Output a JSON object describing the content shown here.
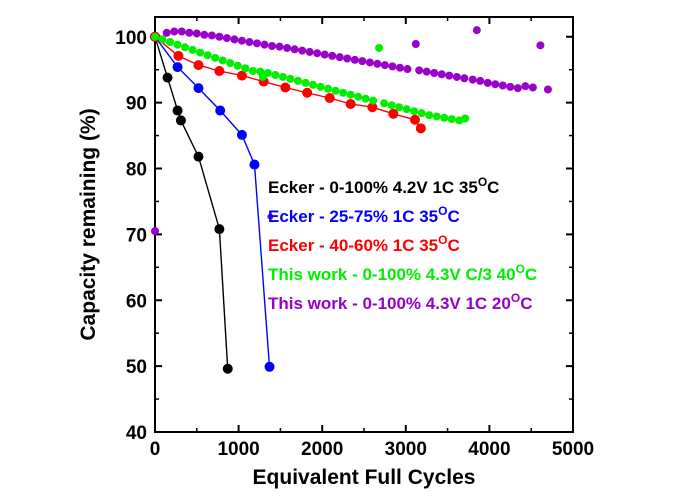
{
  "chart_data": {
    "type": "scatter",
    "title": "",
    "xlabel": "Equivalent Full Cycles",
    "ylabel": "Capacity remaining (%)",
    "xlim": [
      0,
      5000
    ],
    "ylim": [
      40,
      103
    ],
    "xticks": [
      "0",
      "1000",
      "2000",
      "3000",
      "4000",
      "5000"
    ],
    "yticks": [
      "40",
      "50",
      "60",
      "70",
      "80",
      "90",
      "100"
    ],
    "grid": false,
    "legend_placement": "center-right (inside plot)",
    "series": [
      {
        "name": "Ecker - 0-100% 4.2V 1C 35",
        "name_sup": "O",
        "name_suffix": "C",
        "color": "#000000",
        "connected": true,
        "points": [
          [
            0,
            100
          ],
          [
            150,
            93.8
          ],
          [
            270,
            88.8
          ],
          [
            310,
            87.3
          ],
          [
            520,
            81.8
          ],
          [
            770,
            70.8
          ],
          [
            870,
            49.6
          ]
        ]
      },
      {
        "name": "Ecker - 25-75% 1C 35",
        "name_sup": "O",
        "name_suffix": "C",
        "color": "#0000ff",
        "connected": true,
        "points": [
          [
            0,
            100
          ],
          [
            270,
            95.4
          ],
          [
            520,
            92.2
          ],
          [
            780,
            88.8
          ],
          [
            1040,
            85.1
          ],
          [
            1190,
            80.6
          ],
          [
            1370,
            49.9
          ]
        ]
      },
      {
        "name": "Ecker - 40-60% 1C 35",
        "name_sup": "O",
        "name_suffix": "C",
        "color": "#ff0000",
        "connected": true,
        "points": [
          [
            0,
            100
          ],
          [
            280,
            97.1
          ],
          [
            520,
            95.7
          ],
          [
            770,
            94.8
          ],
          [
            1040,
            94.1
          ],
          [
            1300,
            93.2
          ],
          [
            1560,
            92.3
          ],
          [
            1820,
            91.5
          ],
          [
            2090,
            90.7
          ],
          [
            2340,
            89.8
          ],
          [
            2600,
            89.3
          ],
          [
            2850,
            88.3
          ],
          [
            3110,
            87.4
          ],
          [
            3180,
            86.1
          ]
        ]
      },
      {
        "name": "This work - 0-100% 4.3V C/3 40",
        "name_sup": "O",
        "name_suffix": "C",
        "color": "#00ee00",
        "connected": false,
        "points": [
          [
            0,
            100
          ],
          [
            90,
            99.6
          ],
          [
            180,
            99.2
          ],
          [
            270,
            98.8
          ],
          [
            360,
            98.4
          ],
          [
            450,
            98.0
          ],
          [
            540,
            97.6
          ],
          [
            630,
            97.2
          ],
          [
            720,
            96.8
          ],
          [
            810,
            96.4
          ],
          [
            900,
            96.0
          ],
          [
            990,
            95.6
          ],
          [
            1080,
            95.2
          ],
          [
            1170,
            94.8
          ],
          [
            1260,
            94.7
          ],
          [
            1290,
            93.9
          ],
          [
            1350,
            94.5
          ],
          [
            1440,
            94.2
          ],
          [
            1530,
            93.9
          ],
          [
            1620,
            93.6
          ],
          [
            1710,
            93.3
          ],
          [
            1800,
            93.0
          ],
          [
            1890,
            92.7
          ],
          [
            1980,
            92.4
          ],
          [
            2070,
            92.1
          ],
          [
            2160,
            91.8
          ],
          [
            2250,
            91.5
          ],
          [
            2340,
            91.2
          ],
          [
            2430,
            90.9
          ],
          [
            2520,
            90.6
          ],
          [
            2610,
            90.3
          ],
          [
            2680,
            98.3
          ],
          [
            2740,
            89.9
          ],
          [
            2830,
            89.6
          ],
          [
            2920,
            89.3
          ],
          [
            3010,
            89.0
          ],
          [
            3100,
            88.7
          ],
          [
            3190,
            88.4
          ],
          [
            3280,
            88.1
          ],
          [
            3370,
            87.9
          ],
          [
            3460,
            87.7
          ],
          [
            3550,
            87.5
          ],
          [
            3640,
            87.3
          ],
          [
            3710,
            87.6
          ]
        ]
      },
      {
        "name": "This work - 0-100% 4.3V 1C 20",
        "name_sup": "O",
        "name_suffix": "C",
        "color": "#9900cc",
        "connected": false,
        "points": [
          [
            0,
            70.5
          ],
          [
            140,
            100.6
          ],
          [
            230,
            100.8
          ],
          [
            320,
            100.8
          ],
          [
            410,
            100.6
          ],
          [
            500,
            100.5
          ],
          [
            590,
            100.3
          ],
          [
            680,
            100.2
          ],
          [
            770,
            100.0
          ],
          [
            860,
            99.8
          ],
          [
            950,
            99.6
          ],
          [
            1040,
            99.4
          ],
          [
            1130,
            99.2
          ],
          [
            1220,
            99.0
          ],
          [
            1310,
            98.8
          ],
          [
            1400,
            98.6
          ],
          [
            1490,
            98.5
          ],
          [
            1580,
            98.3
          ],
          [
            1670,
            98.1
          ],
          [
            1760,
            97.9
          ],
          [
            1850,
            97.7
          ],
          [
            1940,
            97.5
          ],
          [
            2030,
            97.3
          ],
          [
            2120,
            97.1
          ],
          [
            2210,
            96.9
          ],
          [
            2300,
            96.7
          ],
          [
            2390,
            96.5
          ],
          [
            2480,
            96.3
          ],
          [
            2570,
            96.1
          ],
          [
            2660,
            95.9
          ],
          [
            2750,
            95.7
          ],
          [
            2840,
            95.5
          ],
          [
            2930,
            95.3
          ],
          [
            3020,
            95.1
          ],
          [
            3120,
            98.9
          ],
          [
            3160,
            94.9
          ],
          [
            3250,
            94.7
          ],
          [
            3340,
            94.5
          ],
          [
            3430,
            94.3
          ],
          [
            3520,
            94.1
          ],
          [
            3610,
            93.9
          ],
          [
            3700,
            93.7
          ],
          [
            3800,
            93.5
          ],
          [
            3850,
            101.0
          ],
          [
            3890,
            93.3
          ],
          [
            3980,
            93.0
          ],
          [
            4070,
            92.8
          ],
          [
            4160,
            92.6
          ],
          [
            4250,
            92.4
          ],
          [
            4340,
            92.2
          ],
          [
            4430,
            92.5
          ],
          [
            4520,
            92.3
          ],
          [
            4610,
            98.7
          ],
          [
            4700,
            92.0
          ]
        ]
      }
    ],
    "extra_points": [
      {
        "series": 4,
        "x": 1380,
        "y": 72.7
      }
    ]
  }
}
